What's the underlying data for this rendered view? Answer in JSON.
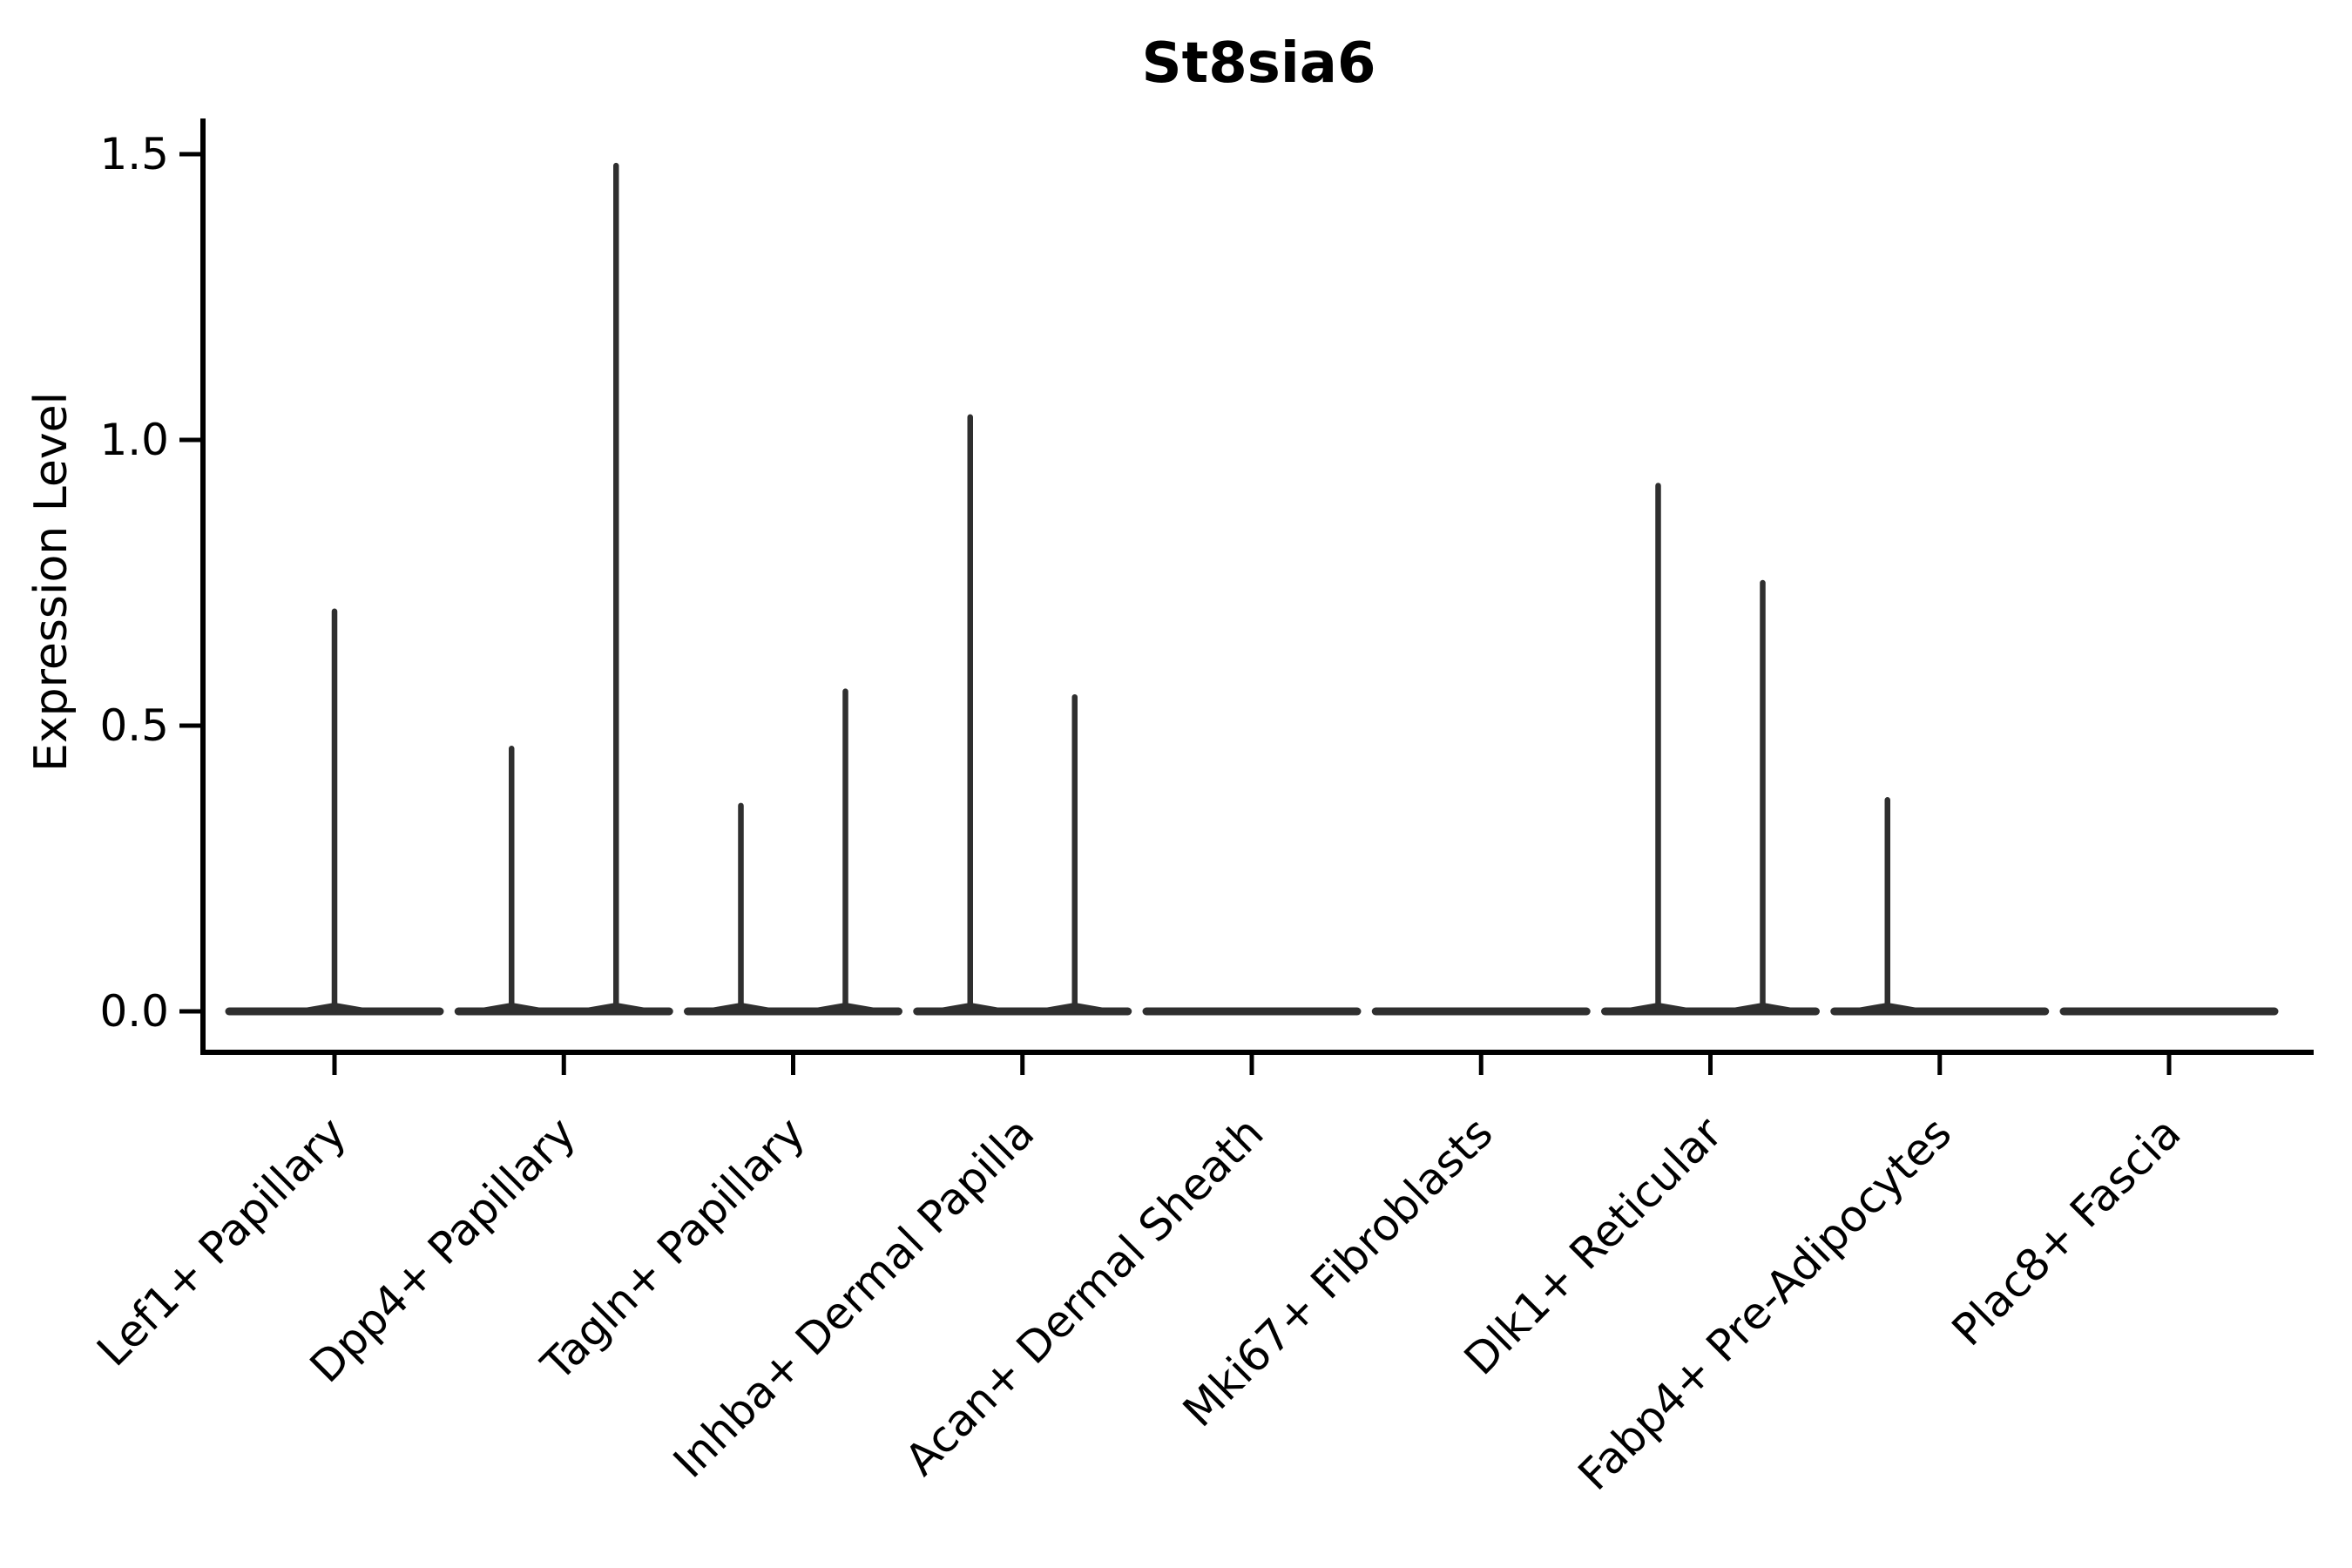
{
  "chart_data": {
    "type": "violin",
    "title": "St8sia6",
    "xlabel": "",
    "ylabel": "Expression Level",
    "y_ticks": [
      "0.0",
      "0.5",
      "1.0",
      "1.5"
    ],
    "ylim": [
      -0.07,
      1.58
    ],
    "grid": false,
    "legend": "none",
    "description": "Zero-inflated single-cell expression violin plot; each cluster shows a flat violin body at 0 with thin density spikes rising to the maximum expression values",
    "categories": [
      "Lef1+ Papillary",
      "Dpp4+ Papillary",
      "Tagln+ Papillary",
      "Inhba+ Dermal Papilla",
      "Acan+ Dermal Sheath",
      "Mki67+ Fibroblasts",
      "Dlk1+ Reticular",
      "Fabp4+ Pre-Adipocytes",
      "Plac8+ Fascia"
    ],
    "violins": [
      {
        "category": "Lef1+ Papillary",
        "body_at_zero": true,
        "spikes": [
          {
            "position": "center",
            "peak_value": 0.7
          }
        ]
      },
      {
        "category": "Dpp4+ Papillary",
        "body_at_zero": true,
        "spikes": [
          {
            "position": "left",
            "peak_value": 0.46
          },
          {
            "position": "right",
            "peak_value": 1.48
          }
        ]
      },
      {
        "category": "Tagln+ Papillary",
        "body_at_zero": true,
        "spikes": [
          {
            "position": "left",
            "peak_value": 0.36
          },
          {
            "position": "right",
            "peak_value": 0.56
          }
        ]
      },
      {
        "category": "Inhba+ Dermal Papilla",
        "body_at_zero": true,
        "spikes": [
          {
            "position": "left",
            "peak_value": 1.04
          },
          {
            "position": "right",
            "peak_value": 0.55
          }
        ]
      },
      {
        "category": "Acan+ Dermal Sheath",
        "body_at_zero": true,
        "spikes": []
      },
      {
        "category": "Mki67+ Fibroblasts",
        "body_at_zero": true,
        "spikes": []
      },
      {
        "category": "Dlk1+ Reticular",
        "body_at_zero": true,
        "spikes": [
          {
            "position": "left",
            "peak_value": 0.92
          },
          {
            "position": "right",
            "peak_value": 0.75
          }
        ]
      },
      {
        "category": "Fabp4+ Pre-Adipocytes",
        "body_at_zero": true,
        "spikes": [
          {
            "position": "left",
            "peak_value": 0.37
          }
        ]
      },
      {
        "category": "Plac8+ Fascia",
        "body_at_zero": true,
        "spikes": []
      }
    ]
  },
  "colors": {
    "violin": "#2f2f2f",
    "axis": "#000000",
    "text": "#000000",
    "background": "#ffffff"
  }
}
